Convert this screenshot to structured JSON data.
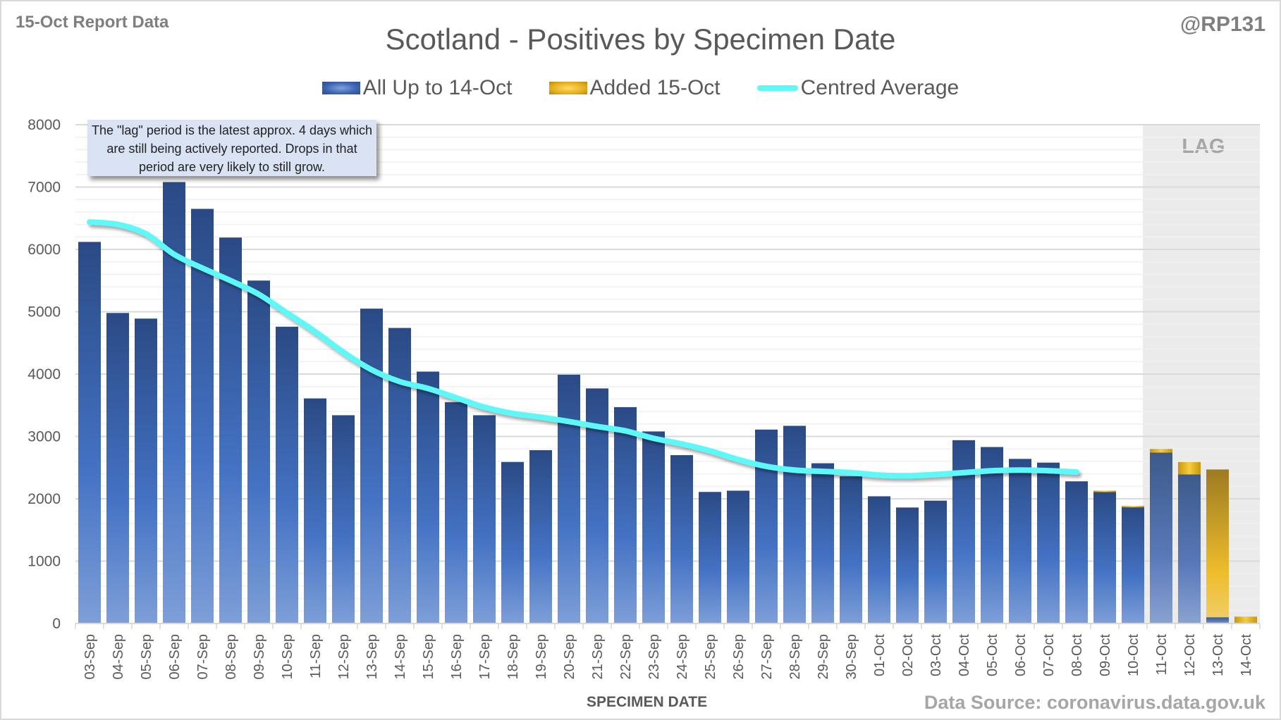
{
  "header": {
    "report_label": "15-Oct Report Data",
    "author_handle": "@RP131",
    "source": "Data Source: coronavirus.data.gov.uk"
  },
  "callout_text": "The \"lag\" period is the latest approx. 4 days which are still being actively reported. Drops in that period are very likely to still grow.",
  "lag_label": "LAG",
  "colors": {
    "series_all": "#2f528f",
    "series_added": "#e6b01e",
    "average_line": "#5ff8f8",
    "lag_shading": "#ebebeb"
  },
  "chart_data": {
    "type": "bar",
    "stacked": true,
    "title": "Scotland - Positives by Specimen Date",
    "xlabel": "SPECIMEN DATE",
    "ylabel": "",
    "ylim": [
      0,
      8000
    ],
    "yticks": [
      0,
      1000,
      2000,
      3000,
      4000,
      5000,
      6000,
      7000,
      8000
    ],
    "grid": true,
    "legend_position": "top-center",
    "categories": [
      "03-Sep",
      "04-Sep",
      "05-Sep",
      "06-Sep",
      "07-Sep",
      "08-Sep",
      "09-Sep",
      "10-Sep",
      "11-Sep",
      "12-Sep",
      "13-Sep",
      "14-Sep",
      "15-Sep",
      "16-Sep",
      "17-Sep",
      "18-Sep",
      "19-Sep",
      "20-Sep",
      "21-Sep",
      "22-Sep",
      "23-Sep",
      "24-Sep",
      "25-Sep",
      "26-Sep",
      "27-Sep",
      "28-Sep",
      "29-Sep",
      "30-Sep",
      "01-Oct",
      "02-Oct",
      "03-Oct",
      "04-Oct",
      "05-Oct",
      "06-Oct",
      "07-Oct",
      "08-Oct",
      "09-Oct",
      "10-Oct",
      "11-Oct",
      "12-Oct",
      "13-Oct",
      "14-Oct"
    ],
    "series": [
      {
        "name": "All Up to 14-Oct",
        "type": "bar",
        "values": [
          6120,
          4980,
          4890,
          7080,
          6650,
          6190,
          5500,
          4760,
          3610,
          3340,
          5050,
          4740,
          4040,
          3550,
          3340,
          2590,
          2780,
          3990,
          3770,
          3470,
          3080,
          2700,
          2110,
          2130,
          3110,
          3170,
          2570,
          2360,
          2040,
          1860,
          1970,
          2940,
          2830,
          2640,
          2580,
          2280,
          2110,
          1870,
          2740,
          2390,
          100,
          0
        ]
      },
      {
        "name": "Added 15-Oct",
        "type": "bar",
        "values": [
          0,
          0,
          0,
          0,
          0,
          0,
          0,
          0,
          0,
          0,
          0,
          0,
          0,
          0,
          0,
          0,
          0,
          0,
          0,
          0,
          0,
          0,
          0,
          0,
          0,
          0,
          0,
          0,
          0,
          0,
          0,
          0,
          0,
          0,
          0,
          0,
          20,
          15,
          60,
          200,
          2370,
          110
        ]
      },
      {
        "name": "Centred Average",
        "type": "line",
        "values": [
          6440,
          6400,
          6250,
          5920,
          5700,
          5500,
          5280,
          4980,
          4680,
          4350,
          4070,
          3880,
          3770,
          3620,
          3470,
          3370,
          3310,
          3240,
          3160,
          3090,
          2970,
          2880,
          2770,
          2630,
          2520,
          2460,
          2440,
          2420,
          2380,
          2370,
          2390,
          2420,
          2450,
          2460,
          2450,
          2430,
          null,
          null,
          null,
          null,
          null,
          null
        ]
      }
    ],
    "lag_period": [
      "11-Oct",
      "14-Oct"
    ],
    "annotations": [
      "LAG"
    ]
  }
}
